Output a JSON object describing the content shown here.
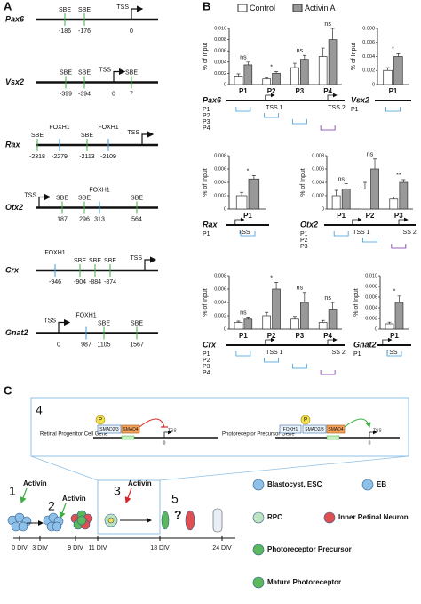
{
  "panel_labels": [
    "A",
    "B",
    "C"
  ],
  "panel_a": {
    "genes": [
      {
        "name": "Pax6",
        "sites": [
          {
            "label": "SBE",
            "pos": "-186"
          },
          {
            "label": "SBE",
            "pos": "-176"
          },
          {
            "label": "TSS",
            "pos": "0"
          }
        ]
      },
      {
        "name": "Vsx2",
        "sites": [
          {
            "label": "SBE",
            "pos": "-399"
          },
          {
            "label": "SBE",
            "pos": "-394"
          },
          {
            "label": "TSS",
            "pos": "0"
          },
          {
            "label": "SBE",
            "pos": "7"
          }
        ]
      },
      {
        "name": "Rax",
        "sites": [
          {
            "label": "SBE",
            "pos": "-2318"
          },
          {
            "label": "FOXH1",
            "pos": "-2279"
          },
          {
            "label": "SBE",
            "pos": "-2113"
          },
          {
            "label": "FOXH1",
            "pos": "-2109"
          },
          {
            "label": "TSS"
          }
        ]
      },
      {
        "name": "Otx2",
        "sites": [
          {
            "label": "TSS"
          },
          {
            "label": "SBE",
            "pos": "187"
          },
          {
            "label": "SBE",
            "pos": "296"
          },
          {
            "label": "FOXH1",
            "pos": "313"
          },
          {
            "label": "SBE",
            "pos": "564"
          }
        ]
      },
      {
        "name": "Crx",
        "sites": [
          {
            "label": "FOXH1",
            "pos": "-946"
          },
          {
            "label": "SBE",
            "pos": "-904"
          },
          {
            "label": "SBE",
            "pos": "-884"
          },
          {
            "label": "SBE",
            "pos": "-874"
          },
          {
            "label": "TSS"
          }
        ]
      },
      {
        "name": "Gnat2",
        "sites": [
          {
            "label": "TSS",
            "pos": "0"
          },
          {
            "label": "FOXH1",
            "pos": "987"
          },
          {
            "label": "SBE",
            "pos": "1105"
          },
          {
            "label": "SBE",
            "pos": "1567"
          }
        ]
      }
    ]
  },
  "chart_data": [
    {
      "type": "bar",
      "gene": "Pax6",
      "ylabel": "% of Input",
      "categories": [
        "P1",
        "P2",
        "P3",
        "P4"
      ],
      "series": [
        {
          "name": "Control",
          "color": "#ffffff",
          "values": [
            0.0015,
            0.001,
            0.003,
            0.005
          ],
          "errors": [
            0.0004,
            0.0002,
            0.0008,
            0.0015
          ]
        },
        {
          "name": "Activin A",
          "color": "#999999",
          "values": [
            0.0035,
            0.002,
            0.0045,
            0.008
          ],
          "errors": [
            0.0005,
            0.0003,
            0.0007,
            0.002
          ]
        }
      ],
      "annotations": [
        "ns",
        "*",
        "ns",
        "ns"
      ],
      "ylim": [
        0,
        0.01
      ],
      "yticks": [
        0,
        0.002,
        0.004,
        0.006,
        0.008,
        {
          "value": 0.01,
          "label": "0.010"
        }
      ],
      "tss": [
        "TSS 1",
        "TSS 2"
      ]
    },
    {
      "type": "bar",
      "gene": "Vsx2",
      "ylabel": "% of Input",
      "categories": [
        "P1"
      ],
      "series": [
        {
          "name": "Control",
          "color": "#ffffff",
          "values": [
            0.002
          ],
          "errors": [
            0.0004
          ]
        },
        {
          "name": "Activin A",
          "color": "#999999",
          "values": [
            0.004
          ],
          "errors": [
            0.0004
          ]
        }
      ],
      "annotations": [
        "*"
      ],
      "ylim": [
        0,
        0.008
      ],
      "yticks": [
        0,
        0.002,
        0.004,
        0.006,
        0.008
      ],
      "tss": []
    },
    {
      "type": "bar",
      "gene": "Rax",
      "ylabel": "% of Input",
      "categories": [
        "P1"
      ],
      "series": [
        {
          "name": "Control",
          "color": "#ffffff",
          "values": [
            0.002
          ],
          "errors": [
            0.0005
          ]
        },
        {
          "name": "Activin A",
          "color": "#999999",
          "values": [
            0.0045
          ],
          "errors": [
            0.0005
          ]
        }
      ],
      "annotations": [
        "*"
      ],
      "ylim": [
        0,
        0.008
      ],
      "yticks": [
        0,
        0.002,
        0.004,
        0.006,
        0.008
      ],
      "tss": [
        "TSS"
      ]
    },
    {
      "type": "bar",
      "gene": "Otx2",
      "ylabel": "% of Input",
      "categories": [
        "P1",
        "P2",
        "P3"
      ],
      "series": [
        {
          "name": "Control",
          "color": "#ffffff",
          "values": [
            0.002,
            0.003,
            0.0015
          ],
          "errors": [
            0.0008,
            0.001,
            0.0003
          ]
        },
        {
          "name": "Activin A",
          "color": "#999999",
          "values": [
            0.003,
            0.006,
            0.004
          ],
          "errors": [
            0.0008,
            0.0015,
            0.0004
          ]
        }
      ],
      "annotations": [
        "ns",
        "ns",
        "**"
      ],
      "ylim": [
        0,
        0.008
      ],
      "yticks": [
        0,
        0.002,
        0.004,
        0.006,
        0.008
      ],
      "tss": [
        "TSS 1",
        "TSS 2"
      ]
    },
    {
      "type": "bar",
      "gene": "Crx",
      "ylabel": "% of Input",
      "categories": [
        "P1",
        "P2",
        "P3",
        "P4"
      ],
      "series": [
        {
          "name": "Control",
          "color": "#ffffff",
          "values": [
            0.001,
            0.002,
            0.0015,
            0.001
          ],
          "errors": [
            0.0002,
            0.0005,
            0.0004,
            0.0003
          ]
        },
        {
          "name": "Activin A",
          "color": "#999999",
          "values": [
            0.0015,
            0.006,
            0.004,
            0.003
          ],
          "errors": [
            0.0003,
            0.001,
            0.0015,
            0.001
          ]
        }
      ],
      "annotations": [
        "ns",
        "*",
        "ns",
        "ns"
      ],
      "ylim": [
        0,
        0.008
      ],
      "yticks": [
        0,
        0.002,
        0.004,
        0.006,
        0.008
      ],
      "tss": [
        "TSS 1",
        "TSS 2"
      ]
    },
    {
      "type": "bar",
      "gene": "Gnat2",
      "ylabel": "% of Input",
      "categories": [
        "P1"
      ],
      "series": [
        {
          "name": "Control",
          "color": "#ffffff",
          "values": [
            0.001
          ],
          "errors": [
            0.0003
          ]
        },
        {
          "name": "Activin A",
          "color": "#999999",
          "values": [
            0.005
          ],
          "errors": [
            0.0012
          ]
        }
      ],
      "annotations": [
        "*"
      ],
      "ylim": [
        0,
        0.01
      ],
      "yticks": [
        0,
        0.002,
        0.004,
        0.006,
        0.008,
        {
          "value": 0.01,
          "label": "0.010"
        }
      ],
      "tss": [
        "TSS"
      ]
    }
  ],
  "panel_c": {
    "step4": {
      "label": "4",
      "genes": [
        "Retinal Progenitor Cell Gene",
        "Photoreceptor Precursor Gene"
      ],
      "p": "P",
      "smad23": "SMAD2/3",
      "smad4": "SMAD4",
      "foxh1": "FOXH1",
      "tss": "TSS",
      "zero": "0"
    },
    "steps": [
      {
        "num": "1",
        "agent": "Activin"
      },
      {
        "num": "2",
        "agent": "Activin"
      },
      {
        "num": "3",
        "agent": "Activin"
      },
      {
        "num": "5"
      }
    ],
    "question": "?",
    "days": [
      "0 DIV",
      "3 DIV",
      "9 DIV",
      "11 DIV",
      "18 DIV",
      "24 DIV"
    ],
    "legend": [
      "Blastocyst, ESC",
      "EB",
      "RPC",
      "Inner Retinal Neuron",
      "Photoreceptor Precursor",
      "Mature Photoreceptor"
    ]
  }
}
